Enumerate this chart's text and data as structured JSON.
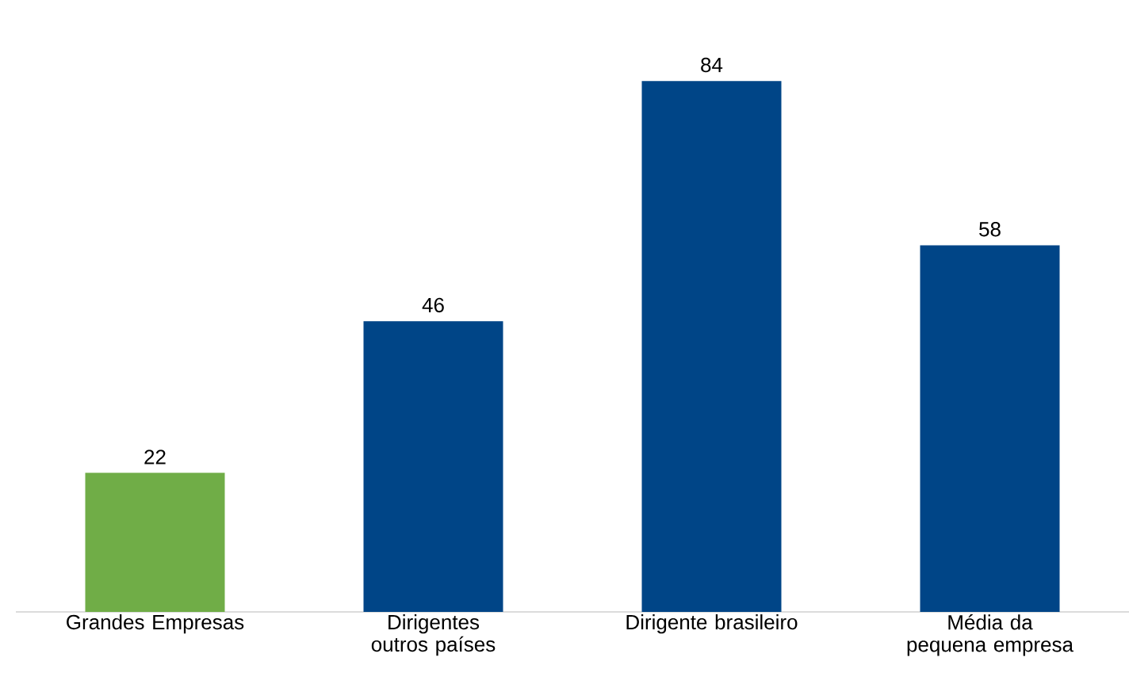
{
  "chart_data": {
    "type": "bar",
    "categories": [
      "Grandes Empresas",
      "Dirigentes  outros países",
      "Dirigente brasileiro",
      "Média da pequena empresa"
    ],
    "values": [
      22,
      46,
      84,
      58
    ],
    "colors": [
      "#70ad47",
      "#004587",
      "#004587",
      "#004587"
    ],
    "tick_labels": "x",
    "data_labels": true
  }
}
